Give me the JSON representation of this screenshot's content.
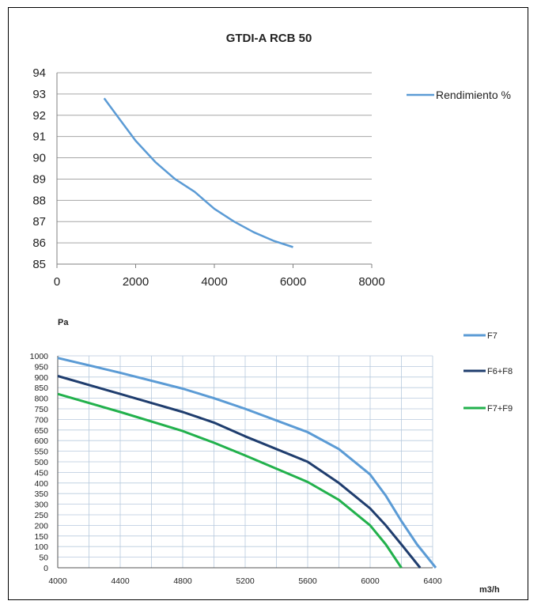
{
  "chart_data": [
    {
      "type": "line",
      "title": "GTDI-A RCB 50",
      "xlabel": "",
      "ylabel": "",
      "xlim": [
        0,
        8000
      ],
      "ylim": [
        85,
        94
      ],
      "x_ticks": [
        "0",
        "2000",
        "4000",
        "6000",
        "8000"
      ],
      "y_ticks": [
        "85",
        "86",
        "87",
        "88",
        "89",
        "90",
        "91",
        "92",
        "93",
        "94"
      ],
      "grid": "horizontal",
      "legend_position": "right",
      "series": [
        {
          "name": "Rendimiento %",
          "color": "#5b9bd5",
          "x": [
            1200,
            1600,
            2000,
            2500,
            3000,
            3500,
            4000,
            4500,
            5000,
            5500,
            6000
          ],
          "y": [
            92.8,
            91.8,
            90.8,
            89.8,
            89.0,
            88.4,
            87.6,
            87.0,
            86.5,
            86.1,
            85.8
          ]
        }
      ]
    },
    {
      "type": "line",
      "title": "",
      "ylabel": "Pa",
      "xlabel": "m3/h",
      "xlim": [
        4000,
        6400
      ],
      "ylim": [
        0,
        1000
      ],
      "x_ticks": [
        "4000",
        "4400",
        "4800",
        "5200",
        "5600",
        "6000",
        "6400"
      ],
      "y_ticks": [
        "0",
        "50",
        "100",
        "150",
        "200",
        "250",
        "300",
        "350",
        "400",
        "450",
        "500",
        "550",
        "600",
        "650",
        "700",
        "750",
        "800",
        "850",
        "900",
        "950",
        "1000"
      ],
      "grid": "both",
      "legend_position": "right",
      "series": [
        {
          "name": "F7",
          "color": "#5b9bd5",
          "x": [
            4000,
            4400,
            4800,
            5000,
            5200,
            5600,
            5800,
            6000,
            6100,
            6200,
            6300,
            6420
          ],
          "y": [
            990,
            920,
            845,
            800,
            750,
            640,
            560,
            440,
            340,
            220,
            110,
            0
          ]
        },
        {
          "name": "F6+F8",
          "color": "#1f3d6e",
          "x": [
            4000,
            4400,
            4800,
            5000,
            5200,
            5600,
            5800,
            6000,
            6100,
            6200,
            6320
          ],
          "y": [
            905,
            820,
            735,
            685,
            620,
            500,
            400,
            280,
            200,
            110,
            0
          ]
        },
        {
          "name": "F7+F9",
          "color": "#22b14c",
          "x": [
            4000,
            4400,
            4800,
            5000,
            5200,
            5600,
            5800,
            6000,
            6100,
            6200
          ],
          "y": [
            820,
            735,
            645,
            590,
            530,
            405,
            320,
            200,
            110,
            0
          ]
        }
      ]
    }
  ]
}
